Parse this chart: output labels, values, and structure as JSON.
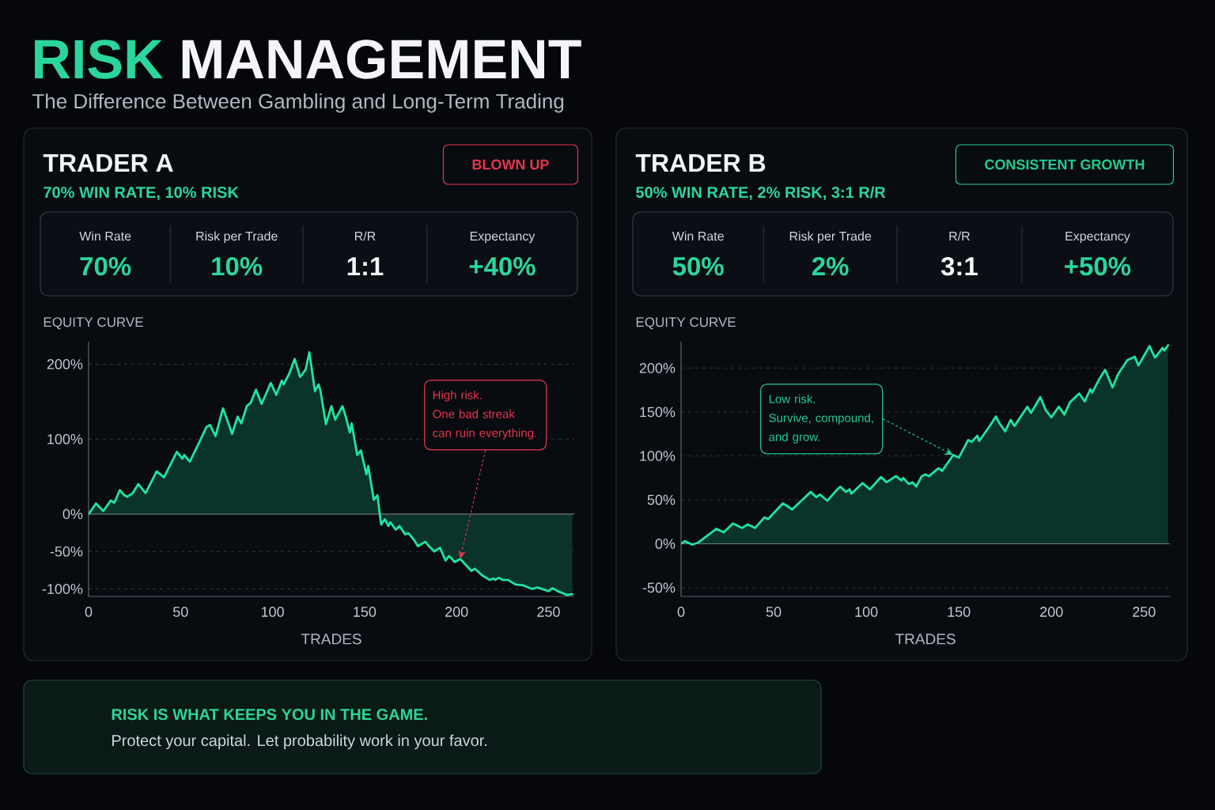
{
  "chart_data": [
    {
      "type": "other",
      "title": "RISK MANAGEMENT",
      "subtitle": "The Difference Between Gambling and Long-Term Trading",
      "annotations": [
        "RISK IS WHAT KEEPS YOU IN THE GAME.",
        "Protect your capital. Let probability work in your favor."
      ]
    },
    {
      "type": "area",
      "title": "TRADER A",
      "subtitle": "70% WIN RATE, 10% RISK",
      "xlabel": "TRADES",
      "color": "#1fe5a0",
      "grid": "y",
      "x": [
        0,
        4,
        8,
        12,
        14,
        17,
        19,
        21,
        24,
        27,
        31,
        37,
        41,
        48,
        51,
        52,
        55,
        61,
        64,
        66,
        69,
        73,
        75,
        78,
        81,
        83,
        86,
        88,
        91,
        94,
        96,
        99,
        102,
        105,
        106,
        109,
        112,
        115,
        118,
        120,
        123,
        125,
        126,
        129,
        132,
        134,
        138,
        140,
        142,
        143,
        146,
        148,
        151,
        152,
        155,
        157,
        159,
        161,
        163,
        164,
        167,
        169,
        172,
        174,
        177,
        179,
        183,
        184,
        185,
        188,
        191,
        194,
        196,
        199,
        202,
        208,
        210,
        214,
        218,
        220,
        221,
        223,
        225,
        228,
        232,
        236,
        241,
        244,
        250,
        252,
        255,
        260,
        263
      ],
      "values": [
        0,
        14,
        4,
        18,
        15,
        32,
        26,
        23,
        28,
        40,
        28,
        57,
        49,
        83,
        74,
        79,
        70,
        100,
        116,
        119,
        104,
        141,
        128,
        107,
        130,
        121,
        144,
        148,
        166,
        147,
        158,
        175,
        159,
        178,
        173,
        187,
        207,
        183,
        193,
        216,
        164,
        173,
        165,
        120,
        144,
        126,
        144,
        128,
        109,
        121,
        79,
        85,
        53,
        64,
        19,
        25,
        -14,
        -7,
        -16,
        -11,
        -21,
        -16,
        -27,
        -26,
        -35,
        -43,
        -37,
        -40,
        -43,
        -50,
        -45,
        -62,
        -56,
        -64,
        -60,
        -76,
        -73,
        -82,
        -88,
        -86,
        -88,
        -85,
        -88,
        -88,
        -94,
        -95,
        -100,
        -98,
        -103,
        -99,
        -103,
        -108,
        -107
      ],
      "xlim": [
        0,
        264
      ],
      "ylim": [
        -110,
        230
      ],
      "xticks": [
        0,
        50,
        100,
        150,
        200,
        250
      ],
      "yticks": [
        {
          "value": -100,
          "label": "-100%"
        },
        {
          "value": -50,
          "label": "-50%"
        },
        {
          "value": 0,
          "label": "0%"
        },
        {
          "value": 100,
          "label": "100%"
        },
        {
          "value": 200,
          "label": "200%"
        }
      ],
      "ref_lines": [
        {
          "axis": "y",
          "value": 0,
          "color": "#6e747e"
        }
      ],
      "annotations": [
        "BLOWN UP",
        "Win Rate",
        "70%",
        "Risk per Trade",
        "10%",
        "R/R",
        "1:1",
        "Expectancy",
        "+40%",
        "EQUITY CURVE",
        {
          "text": "High risk.\nOne bad streak\ncan ruin everything.",
          "x": 202,
          "y": -60
        }
      ]
    },
    {
      "type": "area",
      "title": "TRADER B",
      "subtitle": "50% WIN RATE, 2% RISK, 3:1 R/R",
      "xlabel": "TRADES",
      "color": "#1fe5a0",
      "grid": "y",
      "x": [
        0,
        2,
        6,
        9,
        19,
        23,
        28,
        33,
        36,
        40,
        45,
        47,
        55,
        58,
        60,
        70,
        73,
        75,
        79,
        84,
        86,
        89,
        91,
        92,
        98,
        102,
        108,
        111,
        116,
        119,
        120,
        123,
        125,
        127,
        130,
        132,
        134,
        139,
        141,
        147,
        150,
        155,
        157,
        160,
        161,
        167,
        170,
        172,
        175,
        178,
        180,
        187,
        189,
        194,
        197,
        200,
        204,
        207,
        210,
        215,
        218,
        221,
        222,
        226,
        229,
        231,
        233,
        236,
        241,
        245,
        247,
        253,
        255,
        256,
        260,
        261,
        263
      ],
      "values": [
        0,
        3,
        -1,
        1,
        17,
        13,
        23,
        18,
        22,
        18,
        30,
        28,
        46,
        42,
        39,
        59,
        53,
        56,
        49,
        61,
        65,
        59,
        62,
        57,
        69,
        62,
        76,
        70,
        77,
        72,
        75,
        68,
        70,
        65,
        77,
        79,
        77,
        86,
        83,
        101,
        98,
        118,
        116,
        123,
        117,
        135,
        145,
        137,
        128,
        141,
        134,
        156,
        149,
        167,
        152,
        144,
        156,
        147,
        161,
        171,
        162,
        176,
        172,
        188,
        198,
        188,
        178,
        193,
        209,
        213,
        203,
        225,
        216,
        212,
        223,
        220,
        226
      ],
      "xlim": [
        0,
        264
      ],
      "ylim": [
        -60,
        230
      ],
      "xticks": [
        0,
        50,
        100,
        150,
        200,
        250
      ],
      "yticks": [
        {
          "value": -50,
          "label": "-50%"
        },
        {
          "value": 0,
          "label": "0%"
        },
        {
          "value": 50,
          "label": "50%"
        },
        {
          "value": 100,
          "label": "100%"
        },
        {
          "value": 150,
          "label": "150%"
        },
        {
          "value": 200,
          "label": "200%"
        }
      ],
      "ref_lines": [
        {
          "axis": "y",
          "value": 0,
          "color": "#6e747e"
        }
      ],
      "annotations": [
        "CONSISTENT GROWTH",
        "Win Rate",
        "50%",
        "Risk per Trade",
        "2%",
        "R/R",
        "3:1",
        "Expectancy",
        "+50%",
        "EQUITY CURVE",
        {
          "text": "Low risk.\nSurvive, compound,\nand grow.",
          "x": 147,
          "y": 101
        }
      ]
    }
  ]
}
